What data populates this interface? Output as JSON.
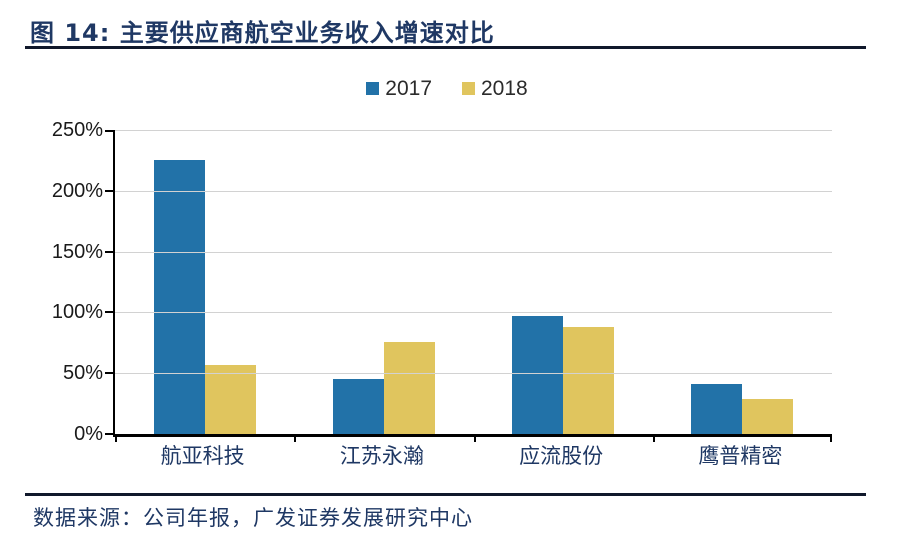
{
  "header": {
    "title": "图 14: 主要供应商航空业务收入增速对比"
  },
  "chart_data": {
    "type": "bar",
    "title": "图 14: 主要供应商航空业务收入增速对比",
    "categories": [
      "航亚科技",
      "江苏永瀚",
      "应流股份",
      "鹰普精密"
    ],
    "series": [
      {
        "name": "2017",
        "color": "#2272A8",
        "values": [
          225,
          45,
          97,
          41
        ]
      },
      {
        "name": "2018",
        "color": "#E0C55E",
        "values": [
          57,
          76,
          88,
          29
        ]
      }
    ],
    "xlabel": "",
    "ylabel": "",
    "unit": "percent",
    "ylim": [
      0,
      250
    ],
    "y_tick_step": 50,
    "y_ticks": [
      "0%",
      "50%",
      "100%",
      "150%",
      "200%",
      "250%"
    ],
    "grid": true,
    "legend_position": "top-center"
  },
  "colors": {
    "accent_navy": "#1F3864",
    "rule_color": "#10182b",
    "gridline": "#d2d2d2",
    "axis": "#000000"
  },
  "footer": {
    "source": "数据来源：公司年报，广发证券发展研究中心"
  }
}
